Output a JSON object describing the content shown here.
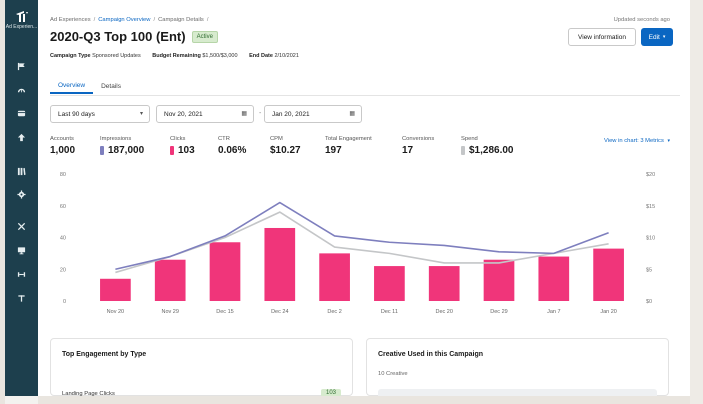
{
  "sidebar": {
    "logo_label": "Ad Experien...",
    "items": [
      "flag-icon",
      "gauge-icon",
      "card-icon",
      "up-arrow-icon",
      "library-icon",
      "gear-icon",
      "tools-icon",
      "monitor-icon",
      "dumbbell-icon",
      "text-icon"
    ]
  },
  "breadcrumb": {
    "root": "Ad Experiences",
    "overview": "Campaign Overview",
    "current": "Campaign Details",
    "separator": "/"
  },
  "header": {
    "updated": "Updated seconds ago",
    "title": "2020-Q3 Top 100 (Ent)",
    "status": "Active",
    "view_info_label": "View information",
    "edit_label": "Edit"
  },
  "meta": {
    "type_label": "Campaign Type",
    "type_value": "Sponsored Updates",
    "budget_label": "Budget Remaining",
    "budget_value": "$1,500/$3,000",
    "end_label": "End Date",
    "end_value": "2/10/2021"
  },
  "tabs": [
    {
      "label": "Overview",
      "active": true
    },
    {
      "label": "Details",
      "active": false
    }
  ],
  "filters": {
    "range": "Last 90 days",
    "start": "Nov 20, 2021",
    "end": "Jan 20, 2021",
    "dash": "-"
  },
  "metrics": [
    {
      "label": "Accounts",
      "value": "1,000",
      "swatch": ""
    },
    {
      "label": "Impressions",
      "value": "187,000",
      "swatch": "#7e7fbe"
    },
    {
      "label": "Clicks",
      "value": "103",
      "swatch": "#f0357a"
    },
    {
      "label": "CTR",
      "value": "0.06%",
      "swatch": ""
    },
    {
      "label": "CPM",
      "value": "$10.27",
      "swatch": ""
    },
    {
      "label": "Total Engagement",
      "value": "197",
      "swatch": ""
    },
    {
      "label": "Conversions",
      "value": "17",
      "swatch": ""
    },
    {
      "label": "Spend",
      "value": "$1,286.00",
      "swatch": "#c4c6c8"
    }
  ],
  "view_in_chart": "View in chart: 3 Metrics",
  "colors": {
    "bar": "#f0357a",
    "impressions_line": "#7e7fbe",
    "spend_line": "#c4c6c8",
    "accent": "#0a66c2"
  },
  "chart_data": {
    "type": "bar",
    "categories": [
      "Nov 20",
      "Nov 29",
      "Dec 15",
      "Dec 24",
      "Dec 2",
      "Dec 11",
      "Dec 20",
      "Dec 29",
      "Jan 7",
      "Jan 20"
    ],
    "left_ticks": [
      "0",
      "20",
      "40",
      "60",
      "80"
    ],
    "right_ticks": [
      "$0",
      "$5",
      "$10",
      "$15",
      "$20"
    ],
    "ylim_left": [
      0,
      80
    ],
    "ylim_right": [
      0,
      20
    ],
    "series": [
      {
        "values": [
          14,
          26,
          37,
          46,
          30,
          22,
          22,
          26,
          28,
          33
        ]
      },
      {
        "values": [
          20,
          28,
          41,
          62,
          41,
          37,
          35,
          31,
          30,
          43
        ]
      },
      {
        "values": [
          4.5,
          7,
          10,
          14,
          8.5,
          7.5,
          6,
          6,
          7.5,
          9
        ]
      }
    ],
    "grid": false,
    "legend": "none"
  },
  "cards": {
    "engagement_title": "Top Engagement by Type",
    "engagement_row": "Landing Page Clicks",
    "engagement_value": "103",
    "creative_title": "Creative Used in this Campaign",
    "creative_count": "10 Creative"
  }
}
